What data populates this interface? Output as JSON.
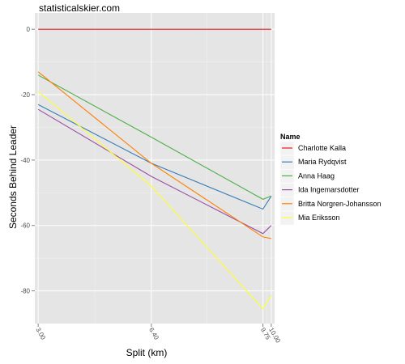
{
  "watermark": "statisticalskier.com",
  "chart_data": {
    "type": "line",
    "xlabel": "Split (km)",
    "ylabel": "Seconds Behind Leader",
    "x": [
      3.0,
      6.4,
      9.75,
      10.0
    ],
    "x_tick_labels": [
      "3.00",
      "6.40",
      "9.75",
      "10.00"
    ],
    "y_ticks": [
      0,
      -20,
      -40,
      -60,
      -80
    ],
    "xlim": [
      2.9,
      10.1
    ],
    "ylim": [
      -90,
      5
    ],
    "grid": true,
    "legend": {
      "title": "Name",
      "placement": "right"
    },
    "series": [
      {
        "name": "Charlotte Kalla",
        "color": "#e41a1c",
        "values": [
          0,
          0,
          0,
          0
        ]
      },
      {
        "name": "Maria Rydqvist",
        "color": "#377eb8",
        "values": [
          -23,
          -41,
          -55,
          -51
        ]
      },
      {
        "name": "Anna Haag",
        "color": "#4daf4a",
        "values": [
          -14,
          -33,
          -52,
          -51
        ]
      },
      {
        "name": "Ida Ingemarsdotter",
        "color": "#984ea3",
        "values": [
          -24.5,
          -45,
          -62.5,
          -60
        ]
      },
      {
        "name": "Britta Norgren-Johansson",
        "color": "#ff7f00",
        "values": [
          -13,
          -41,
          -63.5,
          -64
        ]
      },
      {
        "name": "Mia Eriksson",
        "color": "#ffff33",
        "values": [
          -19,
          -48,
          -85.5,
          -81.5
        ]
      }
    ]
  }
}
